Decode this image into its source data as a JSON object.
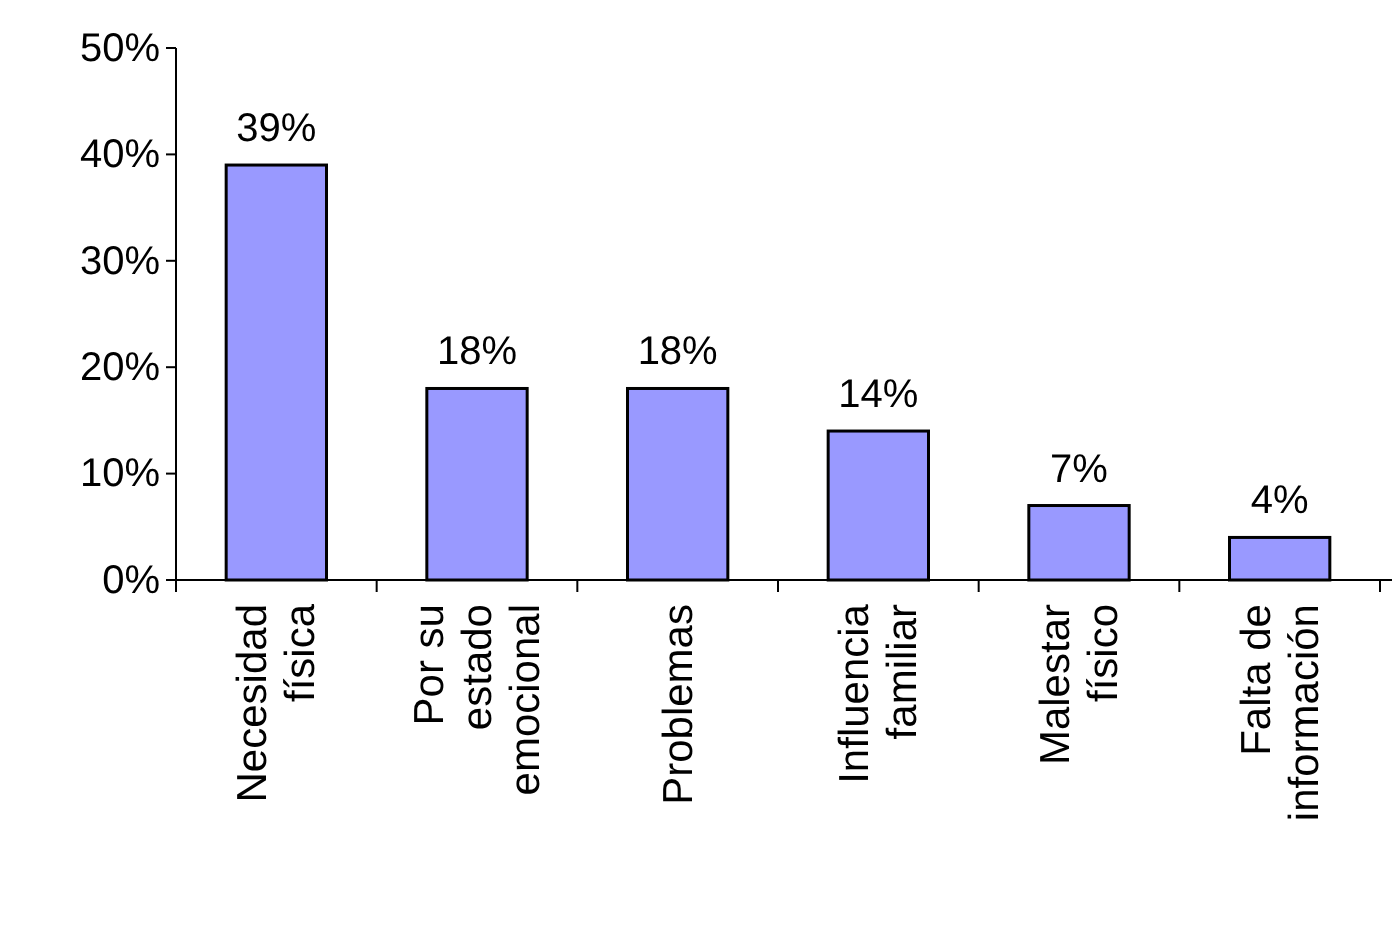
{
  "chart_data": {
    "type": "bar",
    "categories": [
      "Necesidad física",
      "Por su estado emocional",
      "Problemas",
      "Influencia familiar",
      "Malestar físico",
      "Falta de información"
    ],
    "values": [
      39,
      18,
      18,
      14,
      7,
      4
    ],
    "value_labels": [
      "39%",
      "18%",
      "18%",
      "14%",
      "7%",
      "4%"
    ],
    "color": "#9999ff",
    "ylim": [
      0,
      50
    ],
    "yticks": [
      {
        "value": 0,
        "label": "0%"
      },
      {
        "value": 10,
        "label": "10%"
      },
      {
        "value": 20,
        "label": "20%"
      },
      {
        "value": 30,
        "label": "30%"
      },
      {
        "value": 40,
        "label": "40%"
      },
      {
        "value": 50,
        "label": "50%"
      }
    ],
    "grid": false
  }
}
